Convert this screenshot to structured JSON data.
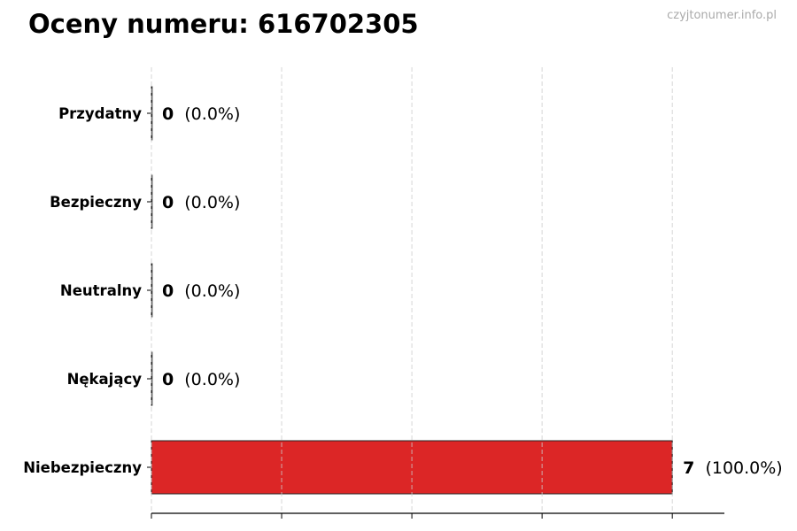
{
  "title": "Oceny numeru: 616702305",
  "watermark": "czyjtonumer.info.pl",
  "chart_data": {
    "type": "bar",
    "orientation": "horizontal",
    "title": "Oceny numeru: 616702305",
    "categories": [
      "Przydatny",
      "Bezpieczny",
      "Neutralny",
      "Nękający",
      "Niebezpieczny"
    ],
    "values": [
      0,
      0,
      0,
      0,
      7
    ],
    "data_labels": [
      "(0.0%)",
      "(0.0%)",
      "(0.0%)",
      "(0.0%)",
      "(100.0%)"
    ],
    "colors": [
      "#22a04a",
      "#3b82f6",
      "#9ca3af",
      "#f59e0b",
      "#dc2626"
    ],
    "xlim": [
      0,
      7.7
    ],
    "x_gridlines": [
      0,
      1.75,
      3.5,
      5.25,
      7
    ],
    "grid": "x dashed",
    "xlabel": "",
    "ylabel": ""
  }
}
